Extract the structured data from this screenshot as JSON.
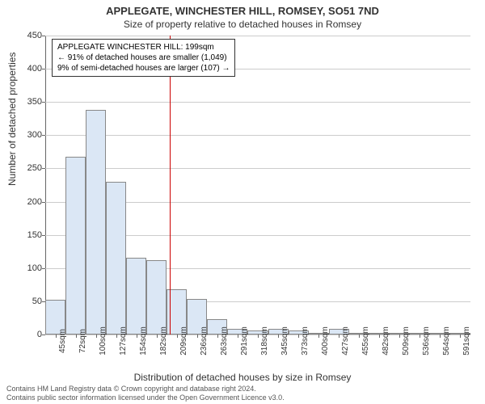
{
  "title": "APPLEGATE, WINCHESTER HILL, ROMSEY, SO51 7ND",
  "subtitle": "Size of property relative to detached houses in Romsey",
  "y_axis_label": "Number of detached properties",
  "x_axis_label": "Distribution of detached houses by size in Romsey",
  "chart": {
    "type": "histogram",
    "ylim": [
      0,
      450
    ],
    "ytick_step": 50,
    "yticks": [
      0,
      50,
      100,
      150,
      200,
      250,
      300,
      350,
      400,
      450
    ],
    "x_categories": [
      "45sqm",
      "72sqm",
      "100sqm",
      "127sqm",
      "154sqm",
      "182sqm",
      "209sqm",
      "236sqm",
      "263sqm",
      "291sqm",
      "318sqm",
      "345sqm",
      "373sqm",
      "400sqm",
      "427sqm",
      "455sqm",
      "482sqm",
      "509sqm",
      "536sqm",
      "564sqm",
      "591sqm"
    ],
    "values": [
      52,
      268,
      338,
      230,
      115,
      112,
      68,
      54,
      23,
      8,
      6,
      8,
      6,
      3,
      8,
      3,
      2,
      2,
      2,
      2,
      2
    ],
    "bar_fill": "#dbe7f5",
    "bar_border": "#888888",
    "background": "#ffffff",
    "grid_color": "#cccccc",
    "axis_color": "#666666",
    "marker_value_sqm": 199,
    "marker_color": "#cc0000",
    "label_fontsize": 12,
    "tick_fontsize": 11
  },
  "annotation": {
    "line1": "APPLEGATE WINCHESTER HILL: 199sqm",
    "line2": "← 91% of detached houses are smaller (1,049)",
    "line3": "9% of semi-detached houses are larger (107) →"
  },
  "footer": {
    "line1": "Contains HM Land Registry data © Crown copyright and database right 2024.",
    "line2": "Contains public sector information licensed under the Open Government Licence v3.0."
  }
}
